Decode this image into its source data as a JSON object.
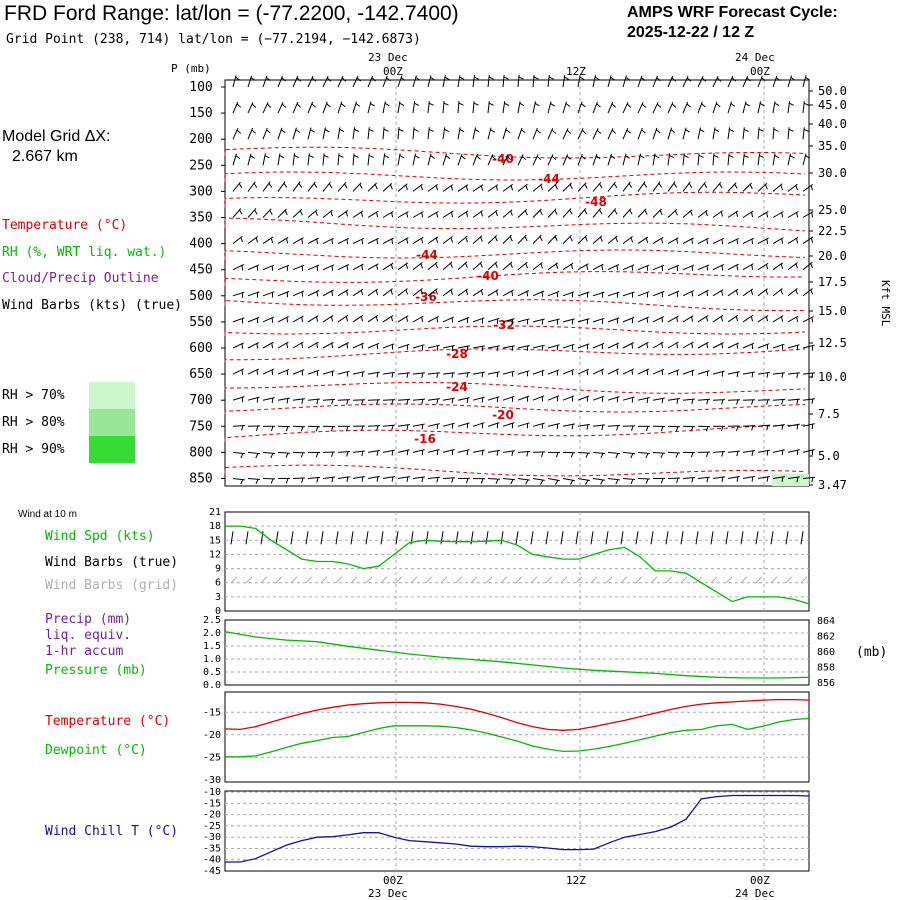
{
  "header": {
    "title": "FRD Ford Range:  lat/lon = (-77.2200, -142.7400)",
    "subtitle": "Grid Point (238, 714) lat/lon = (−77.2194, −142.6873)",
    "cycle_line1": "AMPS WRF Forecast Cycle:",
    "cycle_line2": "2025-12-22 / 12  Z"
  },
  "time_axis": {
    "top_dates": [
      "23 Dec",
      "24 Dec"
    ],
    "hours": [
      "00Z",
      "12Z",
      "00Z"
    ],
    "bottom_dates": [
      "23 Dec",
      "24 Dec"
    ]
  },
  "left_panel": {
    "model_grid_label": "Model Grid ΔX:",
    "model_grid_value": "2.667 km",
    "legend": [
      {
        "label": "Temperature (°C)",
        "color": "#e00000"
      },
      {
        "label": "RH (%, WRT liq. wat.)",
        "color": "#00bb00"
      },
      {
        "label": "Cloud/Precip Outline",
        "color": "#7a1fa0"
      },
      {
        "label": "Wind Barbs (kts) (true)",
        "color": "#000000"
      }
    ],
    "rh_legend": [
      {
        "label": "RH > 70%",
        "color": "#ccf6cc"
      },
      {
        "label": "RH > 80%",
        "color": "#99e699"
      },
      {
        "label": "RH > 90%",
        "color": "#33dd33"
      }
    ]
  },
  "profile": {
    "y_title": "P (mb)",
    "pressure_ticks": [
      "100",
      "150",
      "200",
      "250",
      "300",
      "350",
      "400",
      "450",
      "500",
      "550",
      "600",
      "650",
      "700",
      "750",
      "800",
      "850"
    ],
    "kft_ticks": [
      "50.0",
      "45.0",
      "40.0",
      "35.0",
      "30.0",
      "25.0",
      "22.5",
      "20.0",
      "17.5",
      "15.0",
      "12.5",
      "10.0",
      "7.5",
      "5.0",
      "3.47"
    ],
    "right_title": "Kft MSL",
    "temp_labels": [
      "-40",
      "-44",
      "-48",
      "-44",
      "-40",
      "-36",
      "-32",
      "-28",
      "-24",
      "-20",
      "-16"
    ]
  },
  "wind10m": {
    "heading": "Wind at 10 m",
    "labels": [
      {
        "text": "Wind Spd (kts)",
        "color": "#00bb00"
      },
      {
        "text": "Wind Barbs (true)",
        "color": "#000000"
      },
      {
        "text": "Wind Barbs (grid)",
        "color": "#b0b0b0"
      }
    ],
    "y_ticks": [
      "21",
      "18",
      "15",
      "12",
      "9",
      "6",
      "3",
      "0"
    ]
  },
  "precip": {
    "labels": [
      {
        "text": "Precip (mm)",
        "color": "#7a1fa0"
      },
      {
        "text": "liq. equiv.",
        "color": "#7a1fa0"
      },
      {
        "text": "1-hr accum",
        "color": "#7a1fa0"
      },
      {
        "text": "Pressure (mb)",
        "color": "#00bb00"
      }
    ],
    "left_ticks": [
      "2.5",
      "2.0",
      "1.5",
      "1.0",
      "0.5",
      "0.0"
    ],
    "right_ticks": [
      "864",
      "862",
      "860",
      "858",
      "856"
    ],
    "right_unit": "(mb)"
  },
  "temp_panel": {
    "labels": [
      {
        "text": "Temperature (°C)",
        "color": "#e00000"
      },
      {
        "text": "Dewpoint (°C)",
        "color": "#00bb00"
      }
    ],
    "y_ticks": [
      "-15",
      "-20",
      "-25",
      "-30"
    ]
  },
  "chill_panel": {
    "label": "Wind Chill T (°C)",
    "y_ticks": [
      "-10",
      "-15",
      "-20",
      "-25",
      "-30",
      "-35",
      "-40",
      "-45"
    ]
  },
  "chart_data": {
    "type": "line",
    "x_unit": "forecast hour (00 = 2025-12-22 12Z)",
    "x_range": [
      0,
      38
    ],
    "series": [
      {
        "name": "Wind Spd (kts)",
        "x": [
          0,
          1,
          2,
          3,
          4,
          5,
          6,
          7,
          8,
          9,
          10,
          11,
          12,
          13,
          14,
          15,
          16,
          17,
          18,
          19,
          20,
          21,
          22,
          23,
          24,
          25,
          26,
          27,
          28,
          29,
          30,
          31,
          32,
          33,
          34,
          35,
          36,
          37,
          38
        ],
        "values": [
          18,
          18,
          17.5,
          15,
          13,
          11,
          10.5,
          10.5,
          10,
          9,
          9.5,
          12,
          14.5,
          15,
          14.8,
          14.7,
          14.7,
          14.8,
          15,
          14,
          12,
          11.5,
          11,
          11,
          12,
          13,
          13.5,
          11.5,
          8.5,
          8.5,
          8,
          6,
          4,
          2,
          3,
          3,
          3,
          2.5,
          1.5
        ]
      },
      {
        "name": "Pressure (mb)",
        "x": [
          0,
          2,
          4,
          6,
          8,
          10,
          12,
          14,
          16,
          18,
          20,
          22,
          24,
          26,
          28,
          30,
          32,
          34,
          36,
          38
        ],
        "values": [
          862.5,
          861.8,
          861.4,
          861.2,
          860.6,
          860.1,
          859.6,
          859.2,
          858.9,
          858.6,
          858.2,
          857.8,
          857.5,
          857.3,
          857.1,
          856.8,
          856.6,
          856.5,
          856.5,
          856.6
        ]
      },
      {
        "name": "Temperature (°C)",
        "x": [
          0,
          1,
          2,
          3,
          4,
          5,
          6,
          7,
          8,
          9,
          10,
          11,
          12,
          13,
          14,
          15,
          16,
          17,
          18,
          19,
          20,
          21,
          22,
          23,
          24,
          25,
          26,
          27,
          28,
          29,
          30,
          31,
          32,
          33,
          34,
          35,
          36,
          37,
          38
        ],
        "values": [
          -18.7,
          -18.8,
          -18.2,
          -17.2,
          -16.2,
          -15.3,
          -14.5,
          -13.9,
          -13.4,
          -13.1,
          -12.9,
          -12.8,
          -12.8,
          -12.9,
          -13.2,
          -13.7,
          -14.3,
          -15.2,
          -16.2,
          -17.3,
          -18.2,
          -18.8,
          -19.0,
          -18.8,
          -18.2,
          -17.5,
          -16.8,
          -16.0,
          -15.2,
          -14.4,
          -13.7,
          -13.2,
          -12.9,
          -12.7,
          -12.5,
          -12.3,
          -12.2,
          -12.2,
          -12.3
        ]
      },
      {
        "name": "Dewpoint (°C)",
        "x": [
          0,
          1,
          2,
          3,
          4,
          5,
          6,
          7,
          8,
          9,
          10,
          11,
          12,
          13,
          14,
          15,
          16,
          17,
          18,
          19,
          20,
          21,
          22,
          23,
          24,
          25,
          26,
          27,
          28,
          29,
          30,
          31,
          32,
          33,
          34,
          35,
          36,
          37,
          38
        ],
        "values": [
          -24.9,
          -24.9,
          -24.7,
          -23.8,
          -22.8,
          -21.9,
          -21.3,
          -20.6,
          -20.4,
          -19.5,
          -18.6,
          -18.0,
          -18.0,
          -18.0,
          -18.1,
          -18.4,
          -18.9,
          -19.6,
          -20.5,
          -21.4,
          -22.5,
          -23.2,
          -23.7,
          -23.6,
          -23.2,
          -22.6,
          -21.9,
          -21.1,
          -20.3,
          -19.5,
          -19.0,
          -18.8,
          -18.0,
          -17.7,
          -18.8,
          -18.1,
          -17.2,
          -16.6,
          -16.4
        ]
      },
      {
        "name": "Wind Chill T (°C)",
        "x": [
          0,
          1,
          2,
          3,
          4,
          5,
          6,
          7,
          8,
          9,
          10,
          11,
          12,
          13,
          14,
          15,
          16,
          17,
          18,
          19,
          20,
          21,
          22,
          23,
          24,
          25,
          26,
          27,
          28,
          29,
          30,
          31,
          32,
          33,
          34,
          35,
          36,
          37,
          38
        ],
        "values": [
          -41,
          -41,
          -39.5,
          -36.5,
          -33.5,
          -31.5,
          -30,
          -29.8,
          -29,
          -28,
          -28,
          -30,
          -31.5,
          -32,
          -32.5,
          -33,
          -34,
          -34.2,
          -34.2,
          -34,
          -34.2,
          -34.8,
          -35.5,
          -35.5,
          -35.3,
          -32.5,
          -30,
          -28.8,
          -27.5,
          -25.5,
          -22,
          -13,
          -12,
          -11.5,
          -11.5,
          -11.5,
          -11.5,
          -11.5,
          -11.7
        ]
      }
    ],
    "profile_temperature_isotherms_labels": [
      "-40",
      "-44",
      "-48",
      "-44",
      "-40",
      "-36",
      "-32",
      "-28",
      "-24",
      "-20",
      "-16"
    ],
    "grid": true
  }
}
